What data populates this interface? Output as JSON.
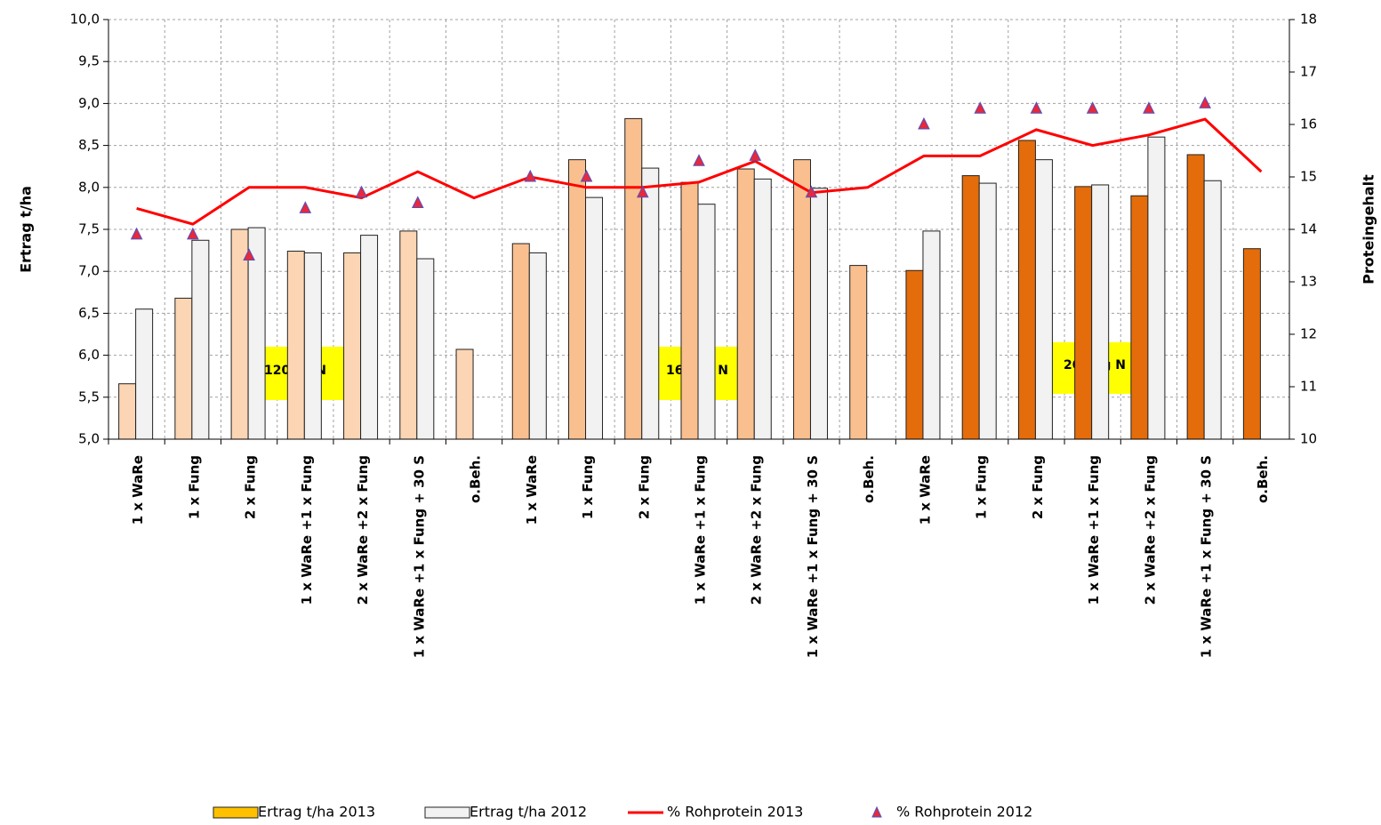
{
  "chart_data": {
    "type": "bar-line",
    "y_label": "Ertrag t/ha",
    "y2_label": "Proteingehalt",
    "categories": [
      "1 x WaRe",
      "1 x Fung",
      "2 x Fung",
      "1 x WaRe +1 x Fung",
      "2 x WaRe +2 x Fung",
      "1 x WaRe +1 x Fung + 30 S",
      "o.Beh.",
      "1 x WaRe",
      "1 x Fung",
      "2 x Fung",
      "1 x WaRe +1 x Fung",
      "2 x WaRe +2 x Fung",
      "1 x WaRe +1 x Fung + 30 S",
      "o.Beh.",
      "1 x WaRe",
      "1 x Fung",
      "2 x Fung",
      "1 x WaRe +1 x Fung",
      "2 x WaRe +2 x Fung",
      "1 x WaRe +1 x Fung + 30 S",
      "o.Beh."
    ],
    "series": [
      {
        "name": "Ertrag t/ha 2013",
        "type": "bar",
        "color": "#ffc000",
        "colors": [
          "#fcd5b4",
          "#fcd5b4",
          "#fcd5b4",
          "#fcd5b4",
          "#fcd5b4",
          "#fcd5b4",
          "#fcd5b4",
          "#f9bf8f",
          "#f9bf8f",
          "#f9bf8f",
          "#f9bf8f",
          "#f9bf8f",
          "#f9bf8f",
          "#f9bf8f",
          "#e46c0a",
          "#e46c0a",
          "#e46c0a",
          "#e46c0a",
          "#e46c0a",
          "#e46c0a",
          "#e46c0a"
        ],
        "values": [
          5.66,
          6.68,
          7.5,
          7.24,
          7.22,
          7.48,
          6.07,
          7.33,
          8.33,
          8.82,
          8.06,
          8.22,
          8.33,
          7.07,
          7.01,
          8.14,
          8.56,
          8.01,
          7.9,
          8.39,
          7.27
        ]
      },
      {
        "name": "Ertrag t/ha 2012",
        "type": "bar",
        "color": "#f2f2f2",
        "values": [
          6.55,
          7.37,
          7.52,
          7.22,
          7.43,
          7.15,
          null,
          7.22,
          7.88,
          8.23,
          7.8,
          8.1,
          7.99,
          null,
          7.48,
          8.05,
          8.33,
          8.03,
          8.6,
          8.08,
          null
        ]
      },
      {
        "name": "% Rohprotein 2013",
        "type": "line",
        "axis": "y2",
        "color": "#ff0000",
        "values": [
          14.4,
          14.1,
          14.8,
          14.8,
          14.6,
          15.1,
          14.6,
          15.0,
          14.8,
          14.8,
          14.9,
          15.3,
          14.7,
          14.8,
          15.4,
          15.4,
          15.9,
          15.6,
          15.8,
          16.1,
          15.1
        ]
      },
      {
        "name": "% Rohprotein 2012",
        "type": "marker",
        "axis": "y2",
        "color": "#e8283c",
        "values": [
          13.9,
          13.9,
          13.5,
          14.4,
          14.7,
          14.5,
          null,
          15.0,
          15.0,
          14.7,
          15.3,
          15.4,
          14.7,
          null,
          16.0,
          16.3,
          16.3,
          16.3,
          16.3,
          16.4,
          null
        ]
      }
    ],
    "annotations": [
      "120 kg N",
      "160 kg N",
      "200 kg N"
    ],
    "ylim": [
      5,
      10
    ],
    "yticks": [
      {
        "value": 5,
        "label": "5,0"
      },
      {
        "value": 5.5,
        "label": "5,5"
      },
      {
        "value": 6,
        "label": "6,0"
      },
      {
        "value": 6.5,
        "label": "6,5"
      },
      {
        "value": 7,
        "label": "7,0"
      },
      {
        "value": 7.5,
        "label": "7,5"
      },
      {
        "value": 8,
        "label": "8,0"
      },
      {
        "value": 8.5,
        "label": "8,5"
      },
      {
        "value": 9,
        "label": "9,0"
      },
      {
        "value": 9.5,
        "label": "9,5"
      },
      {
        "value": 10,
        "label": "10,0"
      }
    ],
    "y2lim": [
      10,
      18
    ],
    "y2ticks": [
      10,
      11,
      12,
      13,
      14,
      15,
      16,
      17,
      18
    ],
    "grid": true
  }
}
